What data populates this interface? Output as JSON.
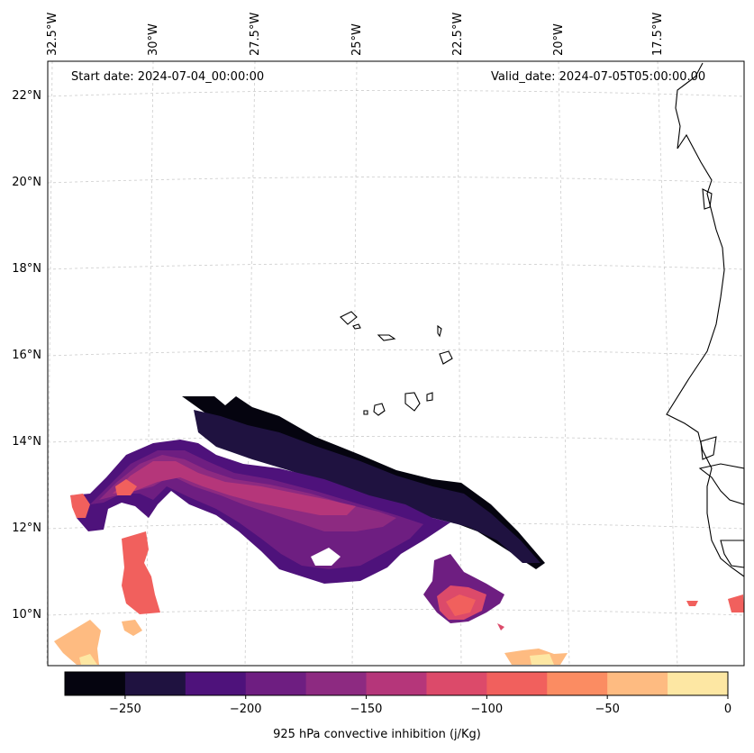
{
  "map": {
    "start_label": "Start date: 2024-07-04_00:00:00",
    "valid_label": "Valid_date: 2024-07-05T05:00:00.00",
    "lon_labels": [
      "32.5°W",
      "30°W",
      "27.5°W",
      "25°W",
      "22.5°W",
      "20°W",
      "17.5°W"
    ],
    "lat_labels": [
      "22°N",
      "20°N",
      "18°N",
      "16°N",
      "14°N",
      "12°N",
      "10°N"
    ],
    "field": "925 hPa convective inhibition",
    "units": "j/Kg"
  },
  "colorbar": {
    "title": "925 hPa convective inhibition (j/Kg)",
    "tick_labels": [
      "−250",
      "−200",
      "−150",
      "−100",
      "−50",
      "0"
    ],
    "levels": [
      -275,
      -250,
      -225,
      -200,
      -175,
      -150,
      -125,
      -100,
      -75,
      -50,
      -25,
      0
    ],
    "colors": [
      "#05040f",
      "#1f1240",
      "#4e127b",
      "#6e1e81",
      "#8d2a81",
      "#b5367a",
      "#dc4a6a",
      "#f1605d",
      "#fb8c62",
      "#febb81",
      "#fde7a3"
    ]
  }
}
